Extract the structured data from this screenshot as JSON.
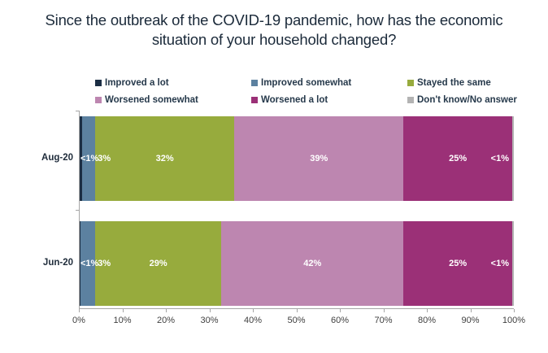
{
  "chart_data": {
    "type": "bar",
    "variant": "horizontal-stacked",
    "title": "Since the outbreak of the COVID-19 pandemic, how has the economic situation of your household changed?",
    "categories": [
      "Aug-20",
      "Jun-20"
    ],
    "series": [
      {
        "name": "Improved a lot",
        "color": "#1c2e44",
        "labels": [
          "<1%",
          "<1%"
        ],
        "values": [
          0.5,
          0.5
        ],
        "render": [
          0.6,
          0.15
        ],
        "label_anchor": "bar-start"
      },
      {
        "name": "Improved somewhat",
        "color": "#5c81a0",
        "labels": [
          "3%",
          "3%"
        ],
        "values": [
          3,
          3
        ],
        "render": [
          3.0,
          3.45
        ],
        "label_anchor": "after-end"
      },
      {
        "name": "Stayed the same",
        "color": "#97ab3d",
        "labels": [
          "32%",
          "29%"
        ],
        "values": [
          32,
          29
        ],
        "render": [
          32,
          29
        ],
        "label_anchor": "center"
      },
      {
        "name": "Worsened somewhat",
        "color": "#bd86b0",
        "labels": [
          "39%",
          "42%"
        ],
        "values": [
          39,
          42
        ],
        "render": [
          39,
          42
        ],
        "label_anchor": "center"
      },
      {
        "name": "Worsened a lot",
        "color": "#9b3077",
        "labels": [
          "25%",
          "25%"
        ],
        "values": [
          25,
          25
        ],
        "render": [
          25,
          25
        ],
        "label_anchor": "center"
      },
      {
        "name": "Don't know/No answer",
        "color": "#b3b3b3",
        "labels": [
          "<1%",
          "<1%"
        ],
        "values": [
          0.5,
          0.5
        ],
        "render": [
          0.4,
          0.4
        ],
        "label_anchor": "bar-end"
      }
    ],
    "x_axis": {
      "min": 0,
      "max": 100,
      "ticks": [
        "0%",
        "10%",
        "20%",
        "30%",
        "40%",
        "50%",
        "60%",
        "70%",
        "80%",
        "90%",
        "100%"
      ]
    },
    "legend_position": "top",
    "bar_label_color": "#ffffff",
    "axis_color": "#a6a6a6",
    "title_color": "#1b2a3a"
  }
}
